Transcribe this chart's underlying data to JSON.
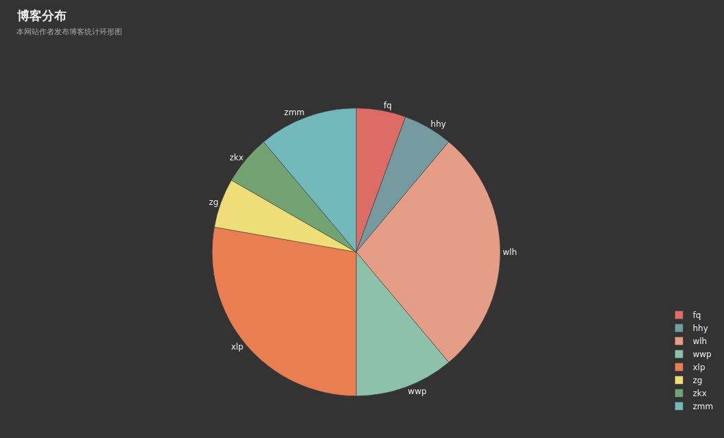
{
  "chart_data": {
    "type": "pie",
    "title": "博客分布",
    "subtitle": "本网站作者发布博客统计环形图",
    "categories": [
      "fq",
      "hhy",
      "wlh",
      "wwp",
      "xlp",
      "zg",
      "zkx",
      "zmm"
    ],
    "values": [
      5.56,
      5.55,
      27.78,
      11.11,
      27.78,
      5.55,
      5.56,
      11.11
    ],
    "colors": [
      "#dd6b66",
      "#759aa0",
      "#e69d87",
      "#8dc1a9",
      "#ea7e53",
      "#eedd78",
      "#73a373",
      "#73b9bc"
    ],
    "legend": "bottom right"
  }
}
